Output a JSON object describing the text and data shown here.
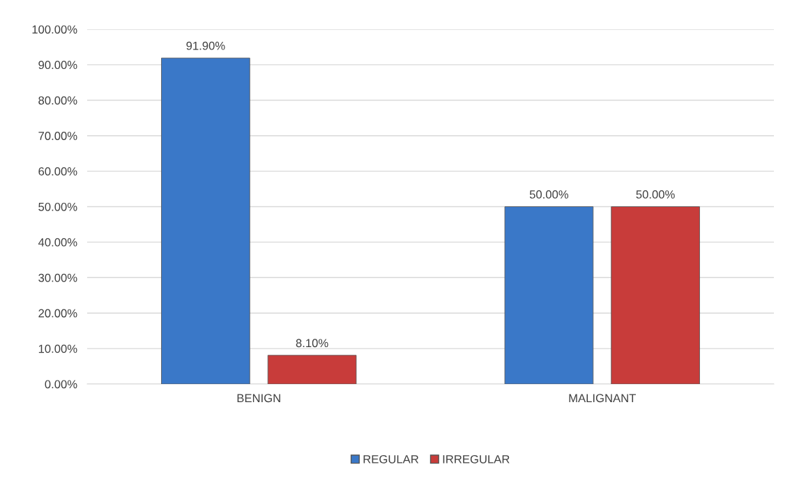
{
  "chart_data": {
    "type": "bar",
    "categories": [
      "BENIGN",
      "MALIGNANT"
    ],
    "series": [
      {
        "name": "REGULAR",
        "color": "#3a78c8",
        "values": [
          91.9,
          50.0
        ],
        "value_labels": [
          "91.90%",
          "50.00%"
        ]
      },
      {
        "name": "IRREGULAR",
        "color": "#c83c3a",
        "values": [
          8.1,
          50.0
        ],
        "value_labels": [
          "8.10%",
          "50.00%"
        ]
      }
    ],
    "ylim": [
      0,
      100
    ],
    "yticks": [
      {
        "value": 0,
        "label": "0.00%"
      },
      {
        "value": 10,
        "label": "10.00%"
      },
      {
        "value": 20,
        "label": "20.00%"
      },
      {
        "value": 30,
        "label": "30.00%"
      },
      {
        "value": 40,
        "label": "40.00%"
      },
      {
        "value": 50,
        "label": "50.00%"
      },
      {
        "value": 60,
        "label": "60.00%"
      },
      {
        "value": 70,
        "label": "70.00%"
      },
      {
        "value": 80,
        "label": "80.00%"
      },
      {
        "value": 90,
        "label": "90.00%"
      },
      {
        "value": 100,
        "label": "100.00%"
      }
    ],
    "grid": "y",
    "legend": "bottom"
  }
}
